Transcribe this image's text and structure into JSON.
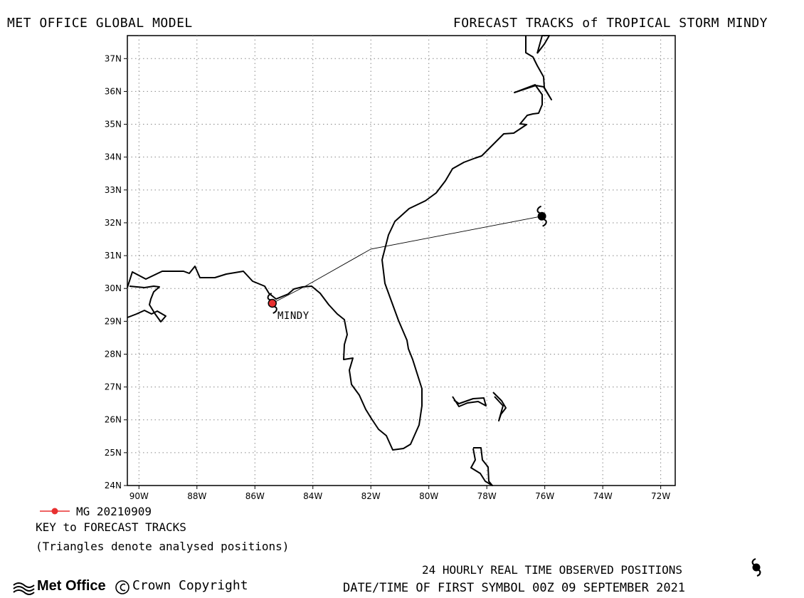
{
  "header": {
    "left": "MET OFFICE GLOBAL MODEL",
    "right": "FORECAST TRACKS of TROPICAL STORM MINDY"
  },
  "map": {
    "lon_range": [
      -90.4,
      -71.5
    ],
    "lat_range": [
      24,
      37.7
    ],
    "lat_ticks": [
      "24N",
      "25N",
      "26N",
      "27N",
      "28N",
      "29N",
      "30N",
      "31N",
      "32N",
      "33N",
      "34N",
      "35N",
      "36N",
      "37N"
    ],
    "lon_ticks": [
      "90W",
      "88W",
      "86W",
      "84W",
      "82W",
      "80W",
      "78W",
      "76W",
      "74W",
      "72W"
    ],
    "storm_label": "MINDY"
  },
  "track": {
    "name": "MG 20210909",
    "color": "#e83030",
    "points": [
      [
        -85.4,
        29.55
      ],
      [
        -84.3,
        30.05
      ],
      [
        -82.0,
        31.2
      ],
      [
        -76.1,
        32.2
      ]
    ],
    "start_symbol": [
      -85.4,
      29.55
    ],
    "end_symbol": [
      -76.1,
      32.2
    ]
  },
  "legend": {
    "entry": "MG 20210909",
    "key_title": "KEY to FORECAST TRACKS",
    "note": "(Triangles denote analysed positions)"
  },
  "footer": {
    "observed": "24 HOURLY REAL TIME OBSERVED POSITIONS",
    "first_symbol": "DATE/TIME OF FIRST SYMBOL 00Z 09 SEPTEMBER 2021",
    "logo": "Met Office",
    "copyright": "Crown Copyright"
  }
}
